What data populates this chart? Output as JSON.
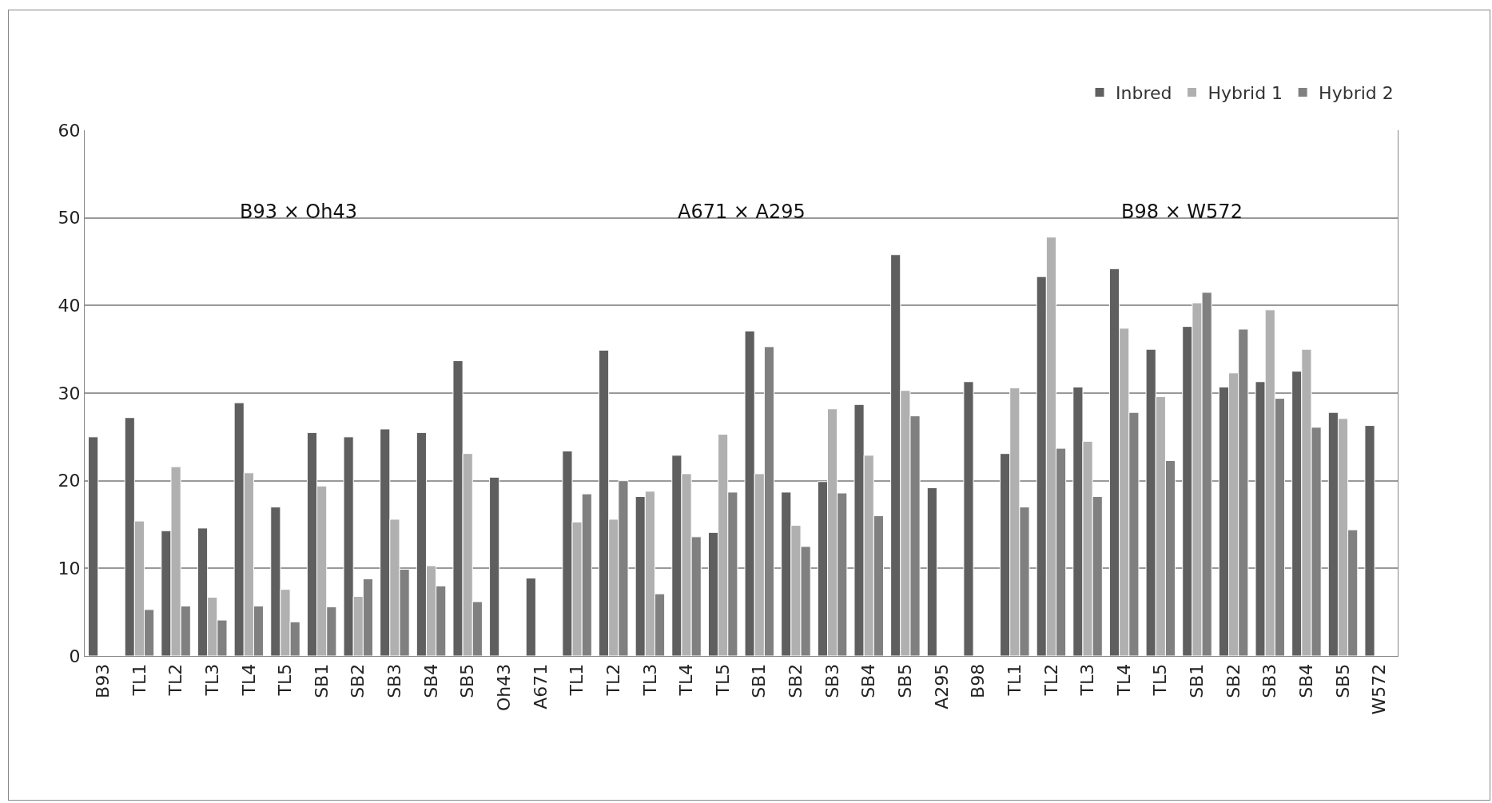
{
  "chart_data": {
    "type": "bar",
    "categories": [
      "B93",
      "TL1",
      "TL2",
      "TL3",
      "TL4",
      "TL5",
      "SB1",
      "SB2",
      "SB3",
      "SB4",
      "SB5",
      "Oh43",
      "A671",
      "TL1",
      "TL2",
      "TL3",
      "TL4",
      "TL5",
      "SB1",
      "SB2",
      "SB3",
      "SB4",
      "SB5",
      "A295",
      "B98",
      "TL1",
      "TL2",
      "TL3",
      "TL4",
      "TL5",
      "SB1",
      "SB2",
      "SB3",
      "SB4",
      "SB5",
      "W572"
    ],
    "series": [
      {
        "name": "Inbred",
        "color": "#5f5f5f",
        "values": [
          25,
          27.2,
          14.3,
          14.6,
          28.9,
          17,
          25.5,
          25,
          25.9,
          25.5,
          33.7,
          20.4,
          8.9,
          23.4,
          34.9,
          18.2,
          22.9,
          14.1,
          37.1,
          18.7,
          19.9,
          28.7,
          45.8,
          19.2,
          31.3,
          23.1,
          43.3,
          30.7,
          44.2,
          35,
          37.6,
          30.7,
          31.3,
          32.5,
          27.8,
          26.3
        ]
      },
      {
        "name": "Hybrid 1",
        "color": "#b0b0b0",
        "values": [
          null,
          15.4,
          21.6,
          6.7,
          20.9,
          7.6,
          19.4,
          6.8,
          15.6,
          10.3,
          23.1,
          null,
          null,
          15.3,
          15.6,
          18.8,
          20.8,
          25.3,
          20.8,
          14.9,
          28.2,
          22.9,
          30.3,
          null,
          null,
          30.6,
          47.8,
          24.5,
          37.4,
          29.6,
          40.3,
          32.3,
          39.5,
          35,
          27.1,
          null
        ]
      },
      {
        "name": "Hybrid 2",
        "color": "#808080",
        "values": [
          null,
          5.3,
          5.7,
          4.1,
          5.7,
          3.9,
          5.6,
          8.8,
          9.9,
          8,
          6.2,
          null,
          null,
          18.5,
          20,
          7.1,
          13.6,
          18.7,
          35.3,
          12.5,
          18.6,
          16,
          27.4,
          null,
          null,
          17,
          23.7,
          18.2,
          27.8,
          22.3,
          41.5,
          37.3,
          29.4,
          26.1,
          14.4,
          null
        ]
      }
    ],
    "ylim": [
      0,
      60
    ],
    "yticks": [
      0,
      10,
      20,
      30,
      40,
      50,
      60
    ],
    "grid": "y",
    "legend": "top right",
    "annotations": [
      "B93 × Oh43",
      "A671 × A295",
      "B98 × W572"
    ]
  }
}
